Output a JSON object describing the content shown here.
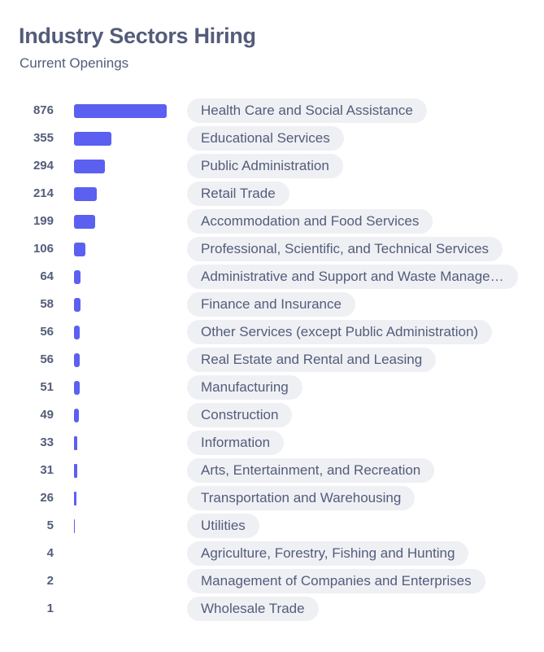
{
  "title": "Industry Sectors Hiring",
  "subtitle": "Current Openings",
  "colors": {
    "bar": "#5b60f0",
    "text": "#545c7a",
    "pill_bg": "#eef0f4"
  },
  "chart_data": {
    "type": "bar",
    "orientation": "horizontal",
    "title": "Industry Sectors Hiring",
    "subtitle": "Current Openings",
    "categories": [
      "Health Care and Social Assistance",
      "Educational Services",
      "Public Administration",
      "Retail Trade",
      "Accommodation and Food Services",
      "Professional, Scientific, and Technical Services",
      "Administrative and Support and Waste Manage…",
      "Finance and Insurance",
      "Other Services (except Public Administration)",
      "Real Estate and Rental and Leasing",
      "Manufacturing",
      "Construction",
      "Information",
      "Arts, Entertainment, and Recreation",
      "Transportation and Warehousing",
      "Utilities",
      "Agriculture, Forestry, Fishing and Hunting",
      "Management of Companies and Enterprises",
      "Wholesale Trade"
    ],
    "values": [
      876,
      355,
      294,
      214,
      199,
      106,
      64,
      58,
      56,
      56,
      51,
      49,
      33,
      31,
      26,
      5,
      4,
      2,
      1
    ],
    "xlim": [
      0,
      876
    ],
    "grid": false,
    "legend": "none"
  }
}
